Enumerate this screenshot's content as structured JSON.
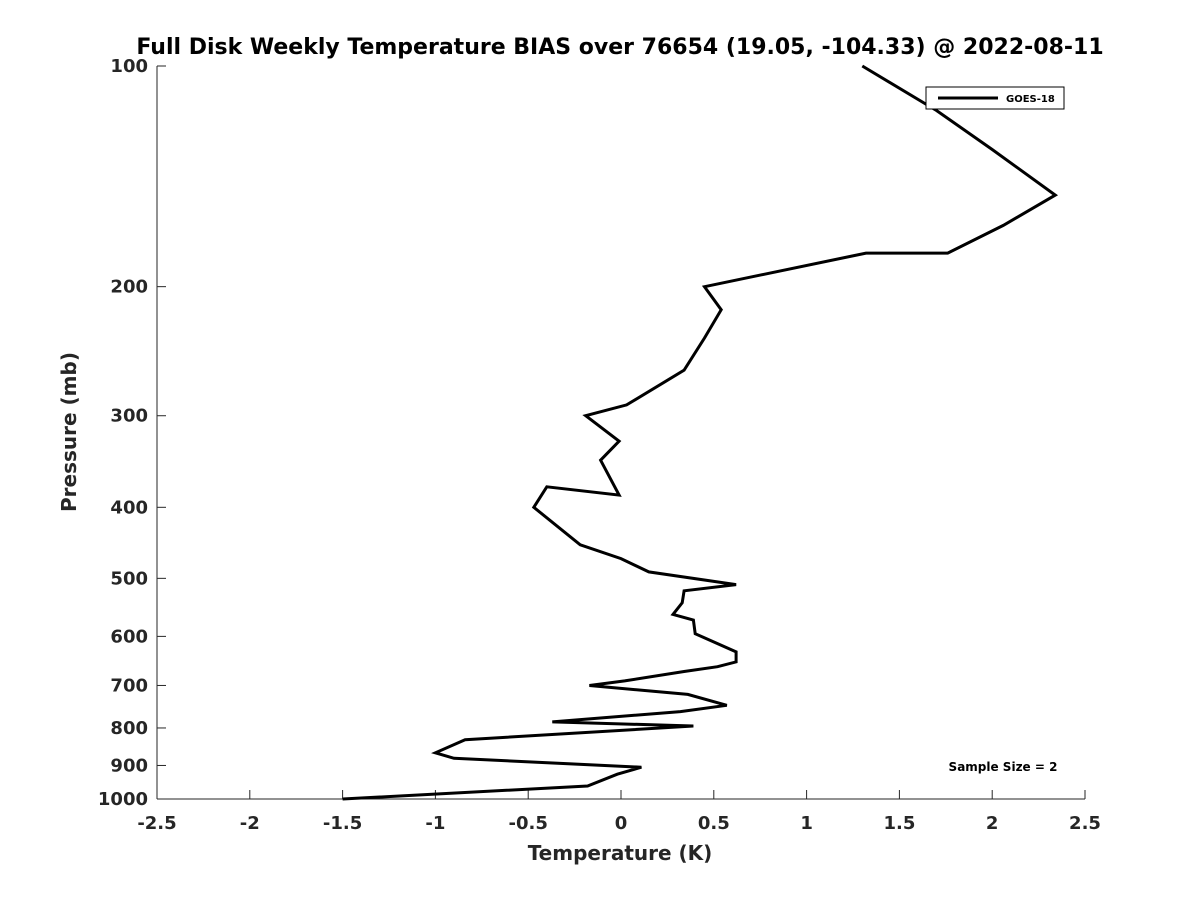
{
  "chart_data": {
    "type": "line",
    "title": "Full Disk Weekly Temperature BIAS over 76654 (19.05, -104.33) @ 2022-08-11",
    "xlabel": "Temperature (K)",
    "ylabel": "Pressure (mb)",
    "xlim": [
      -2.5,
      2.5
    ],
    "ylim": [
      100,
      1000
    ],
    "y_scale": "log",
    "y_reversed": true,
    "grid": false,
    "x_ticks": [
      -2.5,
      -2,
      -1.5,
      -1,
      -0.5,
      0,
      0.5,
      1,
      1.5,
      2,
      2.5
    ],
    "x_tick_labels": [
      "-2.5",
      "-2",
      "-1.5",
      "-1",
      "-0.5",
      "0",
      "0.5",
      "1",
      "1.5",
      "2",
      "2.5"
    ],
    "y_ticks": [
      100,
      200,
      300,
      400,
      500,
      600,
      700,
      800,
      900,
      1000
    ],
    "y_tick_labels": [
      "100",
      "200",
      "300",
      "400",
      "500",
      "600",
      "700",
      "800",
      "900",
      "1000"
    ],
    "legend_position": "top-right",
    "series": [
      {
        "name": "GOES-18",
        "color": "#000000",
        "x": [
          1.3,
          1.7,
          2.0,
          2.34,
          2.06,
          1.76,
          1.32,
          0.45,
          0.54,
          0.45,
          0.34,
          0.03,
          -0.19,
          -0.01,
          -0.11,
          -0.01,
          -0.4,
          -0.47,
          -0.22,
          0.0,
          0.15,
          0.62,
          0.34,
          0.33,
          0.28,
          0.39,
          0.4,
          0.62,
          0.62,
          0.52,
          0.34,
          0.02,
          -0.17,
          0.36,
          0.57,
          0.32,
          -0.37,
          0.39,
          -0.84,
          -1.0,
          -0.9,
          0.11,
          -0.02,
          -0.18,
          -1.5
        ],
        "y": [
          100,
          115,
          130,
          150,
          165,
          180,
          180,
          200,
          215,
          235,
          260,
          290,
          300,
          325,
          345,
          385,
          375,
          400,
          450,
          470,
          490,
          510,
          520,
          540,
          560,
          570,
          595,
          630,
          650,
          660,
          670,
          690,
          700,
          720,
          745,
          760,
          785,
          795,
          830,
          865,
          880,
          905,
          925,
          960,
          1000
        ]
      }
    ],
    "annotation": "Sample Size = 2"
  }
}
